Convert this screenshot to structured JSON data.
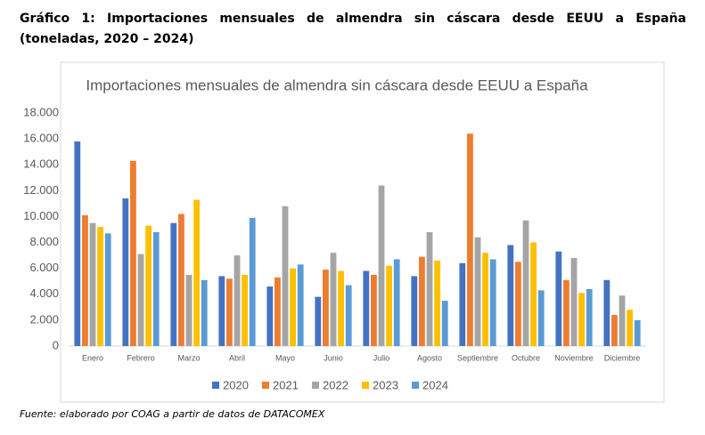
{
  "heading": "Gráfico 1: Importaciones mensuales de almendra sin cáscara desde EEUU a España (toneladas, 2020 – 2024)",
  "chart_data": {
    "type": "bar",
    "title": "Importaciones mensuales de almendra sin cáscara desde EEUU a España",
    "categories": [
      "Enero",
      "Febrero",
      "Marzo",
      "Abril",
      "Mayo",
      "Junio",
      "Julio",
      "Agosto",
      "Septiembre",
      "Octubre",
      "Noviembre",
      "Diciembre"
    ],
    "series": [
      {
        "name": "2020",
        "color": "#4472c4",
        "values": [
          15800,
          11400,
          9500,
          5400,
          4600,
          3800,
          5800,
          5400,
          6400,
          7800,
          7300,
          5100
        ]
      },
      {
        "name": "2021",
        "color": "#ed7d31",
        "values": [
          10100,
          14300,
          10200,
          5200,
          5300,
          5900,
          5500,
          6900,
          16400,
          6500,
          5100,
          2400
        ]
      },
      {
        "name": "2022",
        "color": "#a5a5a5",
        "values": [
          9500,
          7100,
          5500,
          7000,
          10800,
          7200,
          12400,
          8800,
          8400,
          9700,
          6800,
          3900
        ]
      },
      {
        "name": "2023",
        "color": "#ffc000",
        "values": [
          9200,
          9300,
          11300,
          5500,
          6000,
          5800,
          6200,
          6600,
          7200,
          8000,
          4100,
          2800
        ]
      },
      {
        "name": "2024",
        "color": "#5b9bd5",
        "values": [
          8700,
          8800,
          5100,
          9900,
          6300,
          4700,
          6700,
          3500,
          6700,
          4300,
          4400,
          2000
        ]
      }
    ],
    "ylim": [
      0,
      18000
    ],
    "yticks": [
      0,
      {
        "value": 2000,
        "label": "2.000"
      },
      {
        "value": 4000,
        "label": "4.000"
      },
      {
        "value": 6000,
        "label": "6.000"
      },
      {
        "value": 8000,
        "label": "8.000"
      },
      {
        "value": 10000,
        "label": "10.000"
      },
      {
        "value": 12000,
        "label": "12.000"
      },
      {
        "value": 14000,
        "label": "14.000"
      },
      {
        "value": 16000,
        "label": "16.000"
      },
      {
        "value": 18000,
        "label": "18.000"
      }
    ],
    "grid": false,
    "legend": "bottom"
  },
  "source": "Fuente: elaborado por COAG a partir de datos de DATACOMEX"
}
